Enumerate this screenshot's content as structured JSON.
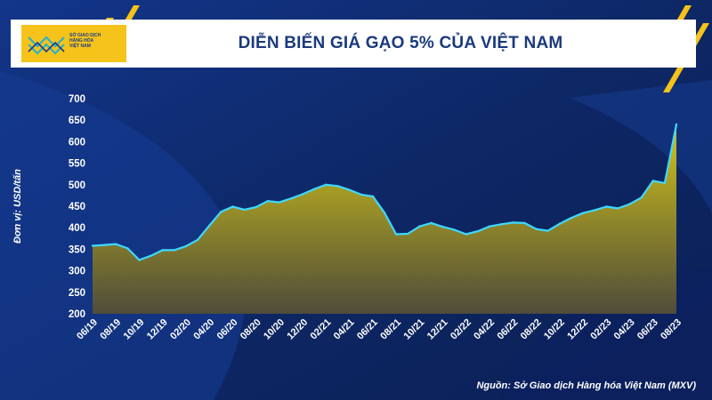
{
  "logo": {
    "lines": [
      "SỞ GIAO DỊCH",
      "HÀNG HÓA",
      "VIỆT NAM"
    ]
  },
  "source": "Nguồn: Sở Giao dịch Hàng hóa Việt Nam (MXV)",
  "colors": {
    "background": "#0f2a6e",
    "line": "#3fd8ff",
    "fill_top": "#d2c41a",
    "fill_bottom": "#4f4c3a",
    "accent": "#f6c31a"
  },
  "chart_data": {
    "type": "area",
    "title": "DIỄN BIẾN GIÁ GẠO 5% CỦA VIỆT NAM",
    "xlabel": "",
    "ylabel": "Đơn vị: USD/tấn",
    "ylim": [
      200,
      700
    ],
    "yticks": [
      200,
      250,
      300,
      350,
      400,
      450,
      500,
      550,
      600,
      650,
      700
    ],
    "xtick_labels": [
      "06/19",
      "08/19",
      "10/19",
      "12/19",
      "02/20",
      "04/20",
      "06/20",
      "08/20",
      "10/20",
      "12/20",
      "02/21",
      "04/21",
      "06/21",
      "08/21",
      "10/21",
      "12/21",
      "02/22",
      "04/22",
      "06/22",
      "08/22",
      "10/22",
      "12/22",
      "02/23",
      "04/23",
      "06/23",
      "08/23"
    ],
    "values": [
      358,
      360,
      362,
      352,
      325,
      335,
      348,
      348,
      357,
      372,
      405,
      437,
      449,
      442,
      448,
      462,
      459,
      468,
      478,
      490,
      500,
      497,
      488,
      477,
      473,
      435,
      385,
      386,
      403,
      411,
      402,
      395,
      385,
      392,
      403,
      408,
      412,
      411,
      397,
      393,
      409,
      423,
      434,
      441,
      449,
      445,
      455,
      470,
      509,
      504,
      640
    ]
  }
}
